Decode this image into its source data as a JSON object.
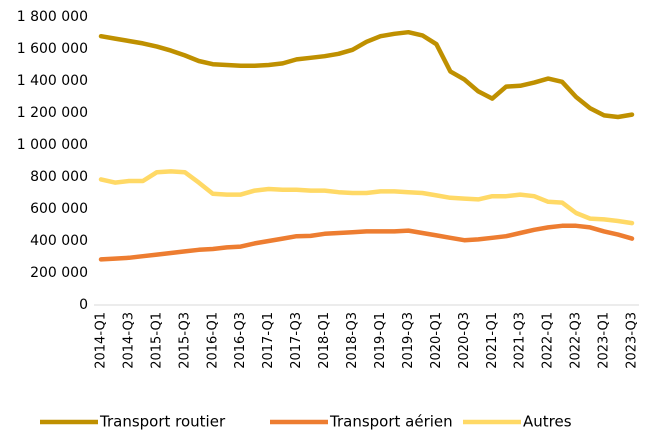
{
  "chart_data": {
    "type": "line",
    "categories": [
      "2014-Q1",
      null,
      "2014-Q3",
      null,
      "2015-Q1",
      null,
      "2015-Q3",
      null,
      "2016-Q1",
      null,
      "2016-Q3",
      null,
      "2017-Q1",
      null,
      "2017-Q3",
      null,
      "2018-Q1",
      null,
      "2018-Q3",
      null,
      "2019-Q1",
      null,
      "2019-Q3",
      null,
      "2020-Q1",
      null,
      "2020-Q3",
      null,
      "2021-Q1",
      null,
      "2021-Q3",
      null,
      "2022-Q1",
      null,
      "2022-Q3",
      null,
      "2023-Q1",
      null,
      "2023-Q3"
    ],
    "series": [
      {
        "name": "Transport routier",
        "color": "#bf9000",
        "values": [
          1680000,
          1665000,
          1650000,
          1635000,
          1615000,
          1590000,
          1560000,
          1525000,
          1505000,
          1500000,
          1495000,
          1495000,
          1500000,
          1510000,
          1535000,
          1545000,
          1555000,
          1570000,
          1595000,
          1645000,
          1680000,
          1695000,
          1705000,
          1685000,
          1630000,
          1460000,
          1410000,
          1335000,
          1290000,
          1365000,
          1370000,
          1390000,
          1415000,
          1395000,
          1300000,
          1230000,
          1185000,
          1175000,
          1190000
        ]
      },
      {
        "name": "Transport aérien",
        "color": "#ed7d31",
        "values": [
          285000,
          290000,
          295000,
          305000,
          315000,
          325000,
          335000,
          345000,
          350000,
          360000,
          365000,
          385000,
          400000,
          415000,
          430000,
          432000,
          445000,
          450000,
          455000,
          460000,
          460000,
          460000,
          465000,
          450000,
          435000,
          420000,
          405000,
          410000,
          420000,
          430000,
          450000,
          470000,
          485000,
          495000,
          495000,
          485000,
          460000,
          440000,
          415000
        ]
      },
      {
        "name": "Autres",
        "color": "#ffd966",
        "values": [
          785000,
          765000,
          775000,
          775000,
          830000,
          835000,
          830000,
          765000,
          695000,
          690000,
          690000,
          715000,
          725000,
          720000,
          720000,
          715000,
          715000,
          705000,
          700000,
          700000,
          710000,
          710000,
          705000,
          700000,
          685000,
          670000,
          665000,
          660000,
          680000,
          680000,
          690000,
          680000,
          645000,
          640000,
          575000,
          540000,
          535000,
          525000,
          512000
        ]
      }
    ],
    "ylim": [
      0,
      1800000
    ],
    "yticks": [
      0,
      {
        "value": 200000,
        "label": "200 000"
      },
      {
        "value": 400000,
        "label": "400 000"
      },
      {
        "value": 600000,
        "label": "600 000"
      },
      {
        "value": 800000,
        "label": "800 000"
      },
      {
        "value": 1000000,
        "label": "1 000 000"
      },
      {
        "value": 1200000,
        "label": "1 200 000"
      },
      {
        "value": 1400000,
        "label": "1 400 000"
      },
      {
        "value": 1600000,
        "label": "1 600 000"
      },
      {
        "value": 1800000,
        "label": "1 800 000"
      }
    ],
    "grid": false,
    "legend": "bottom"
  }
}
